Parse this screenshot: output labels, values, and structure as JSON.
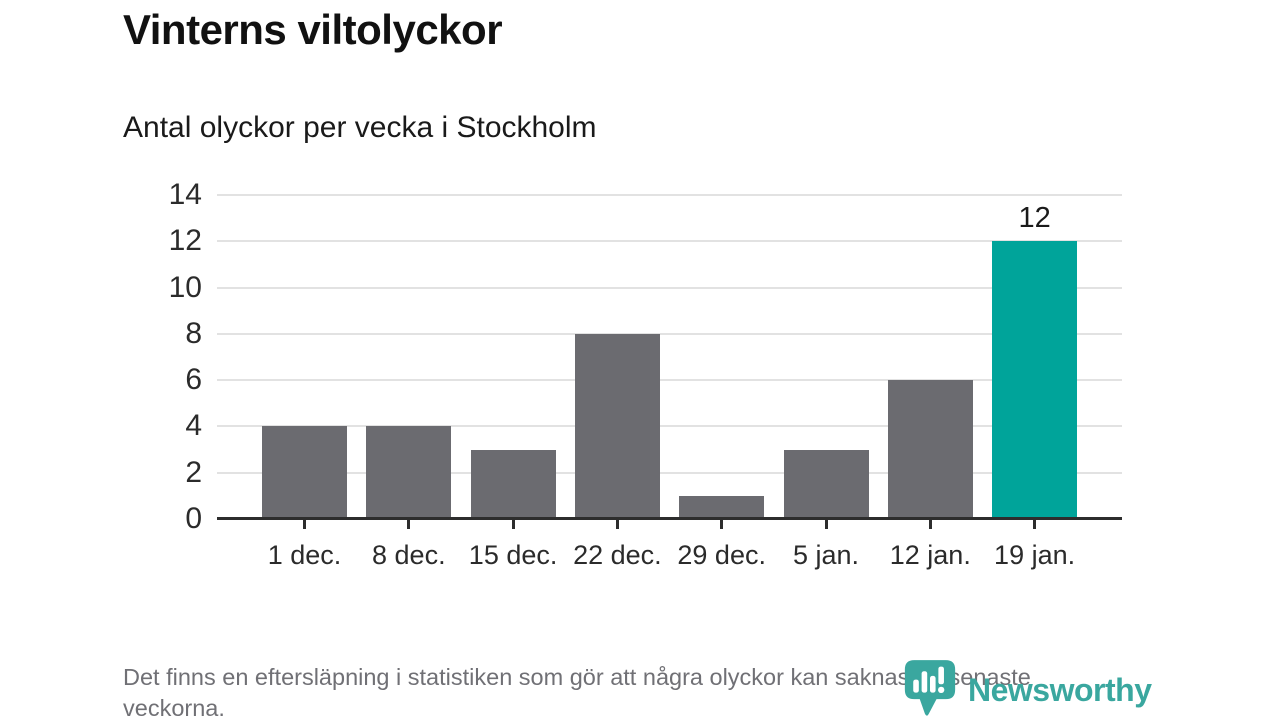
{
  "header": {
    "title": "Vinterns viltolyckor",
    "subtitle": "Antal olyckor per vecka i Stockholm"
  },
  "chart_data": {
    "type": "bar",
    "title": "Vinterns viltolyckor",
    "subtitle": "Antal olyckor per vecka i Stockholm",
    "categories": [
      "1 dec.",
      "8 dec.",
      "15 dec.",
      "22 dec.",
      "29 dec.",
      "5 jan.",
      "12 jan.",
      "19 jan."
    ],
    "values": [
      4,
      4,
      3,
      8,
      1,
      3,
      6,
      12
    ],
    "xlabel": "",
    "ylabel": "",
    "ylim": [
      0,
      14
    ],
    "yticks": [
      0,
      2,
      4,
      6,
      8,
      10,
      12,
      14
    ],
    "grid": true,
    "legend": "none",
    "highlight_index": 7,
    "value_labels": {
      "7": "12"
    },
    "colors": {
      "bar": "#6b6b70",
      "highlight": "#00a49a",
      "gridline": "#e2e2e2",
      "axis": "#2d2d2d"
    }
  },
  "footer": {
    "note": "Det finns en eftersläpning i statistiken som gör att några olyckor kan saknas de senaste veckorna."
  },
  "logo": {
    "text": "Newsworthy",
    "color": "#3aa79f",
    "icon": "bar-chart-speech-bubble-icon"
  }
}
